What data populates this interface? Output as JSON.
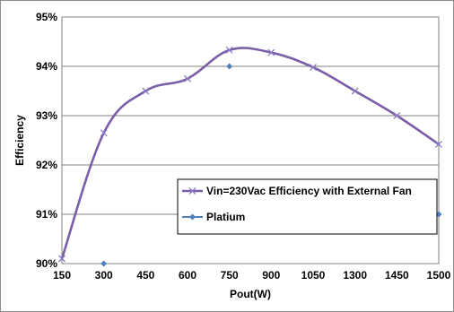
{
  "chart_data": {
    "type": "line",
    "xlabel": "Pout(W)",
    "ylabel": "Efficiency",
    "x_ticks": [
      "150",
      "300",
      "450",
      "600",
      "750",
      "900",
      "1050",
      "1300",
      "1450",
      "1500"
    ],
    "y_ticks": [
      "90%",
      "91%",
      "92%",
      "93%",
      "94%",
      "95%"
    ],
    "ylim": [
      90,
      95
    ],
    "grid": "horizontal",
    "legend_position": "lower-right inside plot",
    "series": [
      {
        "name": "Vin=230Vac Efficiency with External Fan",
        "style": "smooth line with x markers",
        "color": "#7b5ea7",
        "x": [
          "150",
          "300",
          "450",
          "600",
          "750",
          "900",
          "1050",
          "1300",
          "1450",
          "1500"
        ],
        "values": [
          90.1,
          92.65,
          93.5,
          93.75,
          94.33,
          94.28,
          93.98,
          93.5,
          93.0,
          92.42
        ]
      },
      {
        "name": "Platium",
        "style": "diamond markers",
        "color": "#4f81bd",
        "x": [
          "300",
          "750",
          "1500"
        ],
        "values": [
          90.0,
          94.0,
          91.0
        ]
      }
    ]
  }
}
